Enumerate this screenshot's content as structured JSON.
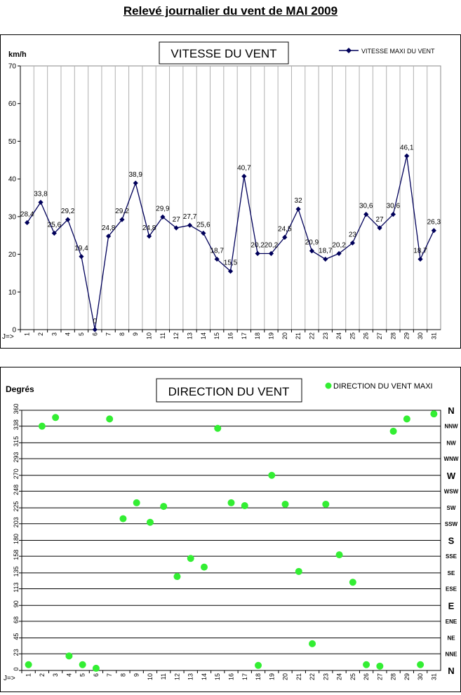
{
  "page_title": "Relevé journalier du vent de MAI 2009",
  "chart_data": [
    {
      "type": "line",
      "title": "VITESSE DU VENT",
      "ylabel": "km/h",
      "xlabel": "J=>",
      "ylim": [
        0,
        70
      ],
      "yticks": [
        0,
        10,
        20,
        30,
        40,
        50,
        60,
        70
      ],
      "categories": [
        "1",
        "2",
        "3",
        "4",
        "5",
        "6",
        "7",
        "8",
        "9",
        "10",
        "11",
        "12",
        "13",
        "14",
        "15",
        "16",
        "17",
        "18",
        "19",
        "20",
        "21",
        "22",
        "23",
        "24",
        "25",
        "26",
        "27",
        "28",
        "29",
        "30",
        "31"
      ],
      "legend_position": "top-right",
      "grid": "vertical",
      "series": [
        {
          "name": "VITESSE MAXI DU VENT",
          "color": "#00005a",
          "values": [
            28.4,
            33.8,
            25.6,
            29.2,
            19.4,
            0,
            24.8,
            29.2,
            38.9,
            24.8,
            29.9,
            27,
            27.7,
            25.6,
            18.7,
            15.5,
            40.7,
            20.2,
            20.2,
            24.5,
            32,
            20.9,
            18.7,
            20.2,
            23,
            30.6,
            27,
            30.6,
            46.1,
            18.7,
            26.3
          ],
          "labels": [
            "28,4",
            "33,8",
            "25,6",
            "29,2",
            "19,4",
            "0",
            "24,8",
            "29,2",
            "38,9",
            "24,8",
            "29,9",
            "27",
            "27,7",
            "25,6",
            "18,7",
            "15,5",
            "40,7",
            "20,2",
            "20,2",
            "24,5",
            "32",
            "20,9",
            "18,7",
            "20,2",
            "23",
            "30,6",
            "27",
            "30,6",
            "46,1",
            "18,7",
            "26,3"
          ]
        }
      ]
    },
    {
      "type": "scatter",
      "title": "DIRECTION DU VENT",
      "ylabel": "Degrés",
      "xlabel": "J=>",
      "ylim": [
        0,
        360
      ],
      "yticks": [
        0,
        23,
        45,
        68,
        90,
        113,
        135,
        158,
        180,
        203,
        225,
        248,
        270,
        293,
        315,
        338,
        360
      ],
      "compass_labels": [
        "N",
        "NNE",
        "NE",
        "ENE",
        "E",
        "ESE",
        "SE",
        "SSE",
        "S",
        "SSW",
        "SW",
        "WSW",
        "W",
        "WNW",
        "NW",
        "NNW",
        "N"
      ],
      "categories": [
        "1",
        "2",
        "3",
        "4",
        "5",
        "6",
        "7",
        "8",
        "9",
        "10",
        "11",
        "12",
        "13",
        "14",
        "15",
        "16",
        "17",
        "18",
        "19",
        "20",
        "21",
        "22",
        "23",
        "24",
        "25",
        "26",
        "27",
        "28",
        "29",
        "30",
        "31"
      ],
      "legend_position": "top-right",
      "grid": "horizontal",
      "series": [
        {
          "name": "DIRECTION DU VENT MAXI",
          "color": "#33ee33",
          "values": [
            8,
            338,
            350,
            20,
            8,
            3,
            348,
            210,
            232,
            205,
            227,
            130,
            155,
            143,
            335,
            232,
            228,
            7,
            270,
            230,
            137,
            37,
            230,
            160,
            122,
            8,
            6,
            331,
            348,
            8,
            355
          ]
        }
      ]
    }
  ]
}
